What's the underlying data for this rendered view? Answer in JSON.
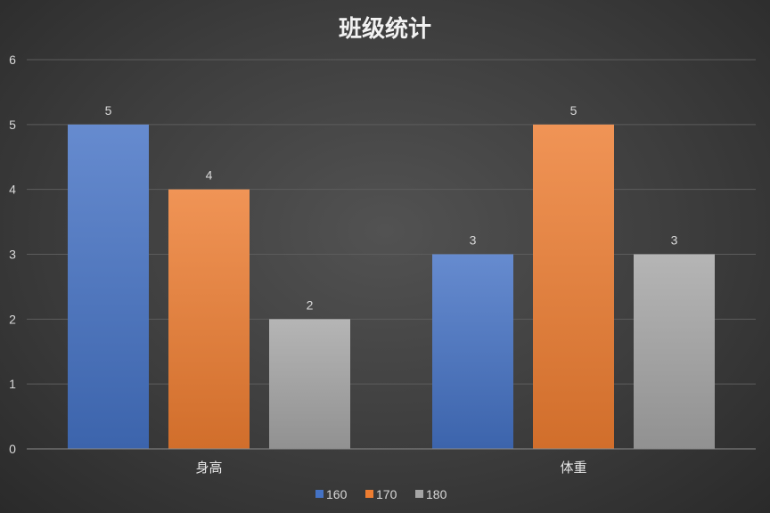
{
  "chart_data": {
    "type": "bar",
    "title": "班级统计",
    "categories": [
      "身高",
      "体重"
    ],
    "series": [
      {
        "name": "160",
        "values": [
          5,
          3
        ],
        "color": "#4472c4"
      },
      {
        "name": "170",
        "values": [
          4,
          5
        ],
        "color": "#ed7d31"
      },
      {
        "name": "180",
        "values": [
          2,
          3
        ],
        "color": "#a5a5a5"
      }
    ],
    "ylim": [
      0,
      6
    ],
    "yticks": [
      0,
      1,
      2,
      3,
      4,
      5,
      6
    ],
    "grid": true,
    "legend": "bottom",
    "data_labels": true
  }
}
